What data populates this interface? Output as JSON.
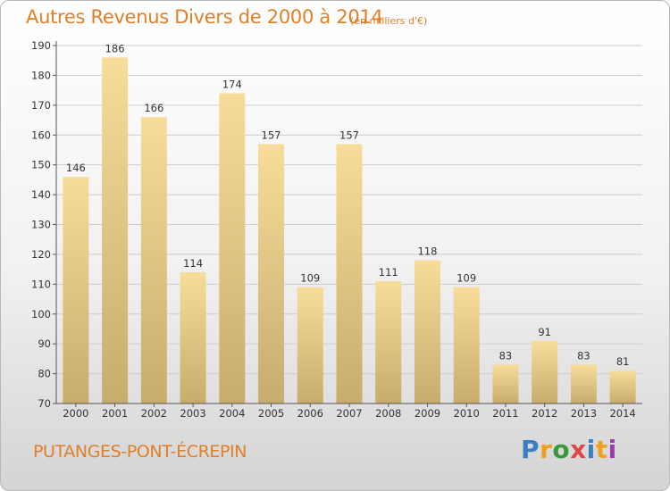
{
  "title": "Autres Revenus Divers de 2000 à 2014",
  "unit_note": "(en milliers d'€)",
  "commune": "PUTANGES-PONT-ÉCREPIN",
  "logo": {
    "letters": [
      "P",
      "r",
      "o",
      "x",
      "i",
      "t",
      "i"
    ],
    "colors": [
      "#3a7fc1",
      "#f0a020",
      "#3a9a3a",
      "#e04848",
      "#3a7fc1",
      "#f0a020",
      "#9a3ab0"
    ]
  },
  "chart_data": {
    "type": "bar",
    "title": "Autres Revenus Divers de 2000 à 2014",
    "categories": [
      "2000",
      "2001",
      "2002",
      "2003",
      "2004",
      "2005",
      "2006",
      "2007",
      "2008",
      "2009",
      "2010",
      "2011",
      "2012",
      "2013",
      "2014"
    ],
    "values": [
      146,
      186,
      166,
      114,
      174,
      157,
      109,
      157,
      111,
      118,
      109,
      83,
      91,
      83,
      81
    ],
    "ylim": [
      70,
      190
    ],
    "yticks": [
      70,
      80,
      90,
      100,
      110,
      120,
      130,
      140,
      150,
      160,
      170,
      180,
      190
    ],
    "grid": true,
    "colors": {
      "bar_light": "#f7dc9a",
      "bar_dark": "#c8ac6c",
      "grid": "#cccccc",
      "axis": "#555555"
    }
  }
}
